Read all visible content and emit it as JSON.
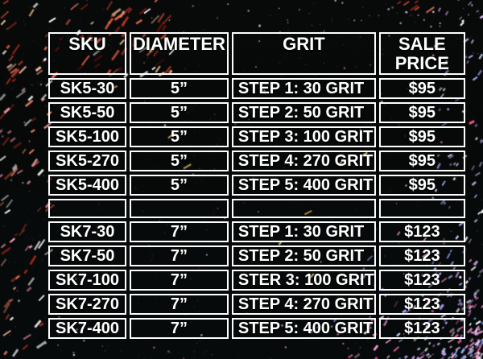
{
  "colors": {
    "background": "#050508",
    "table_border": "#ffffff",
    "table_text": "#ffffff"
  },
  "chart_data": {
    "type": "table",
    "columns": [
      "SKU",
      "DIAMETER",
      "GRIT",
      "SALE PRICE"
    ],
    "rows": [
      [
        "SK5-30",
        "5”",
        "STEP 1: 30 GRIT",
        "$95"
      ],
      [
        "SK5-50",
        "5”",
        "STEP 2: 50 GRIT",
        "$95"
      ],
      [
        "SK5-100",
        "5”",
        "STEP 3: 100 GRIT",
        "$95"
      ],
      [
        "SK5-270",
        "5”",
        "STEP 4: 270 GRIT",
        "$95"
      ],
      [
        "SK5-400",
        "5”",
        "STEP 5: 400 GRIT",
        "$95"
      ],
      [
        "",
        "",
        "",
        ""
      ],
      [
        "SK7-30",
        "7”",
        "STEP 1: 30 GRIT",
        "$123"
      ],
      [
        "SK7-50",
        "7”",
        "STEP 2: 50 GRIT",
        "$123"
      ],
      [
        "SK7-100",
        "7”",
        "STER 3: 100 GRIT",
        "$123"
      ],
      [
        "SK7-270",
        "7”",
        "STEP 4: 270 GRIT",
        "$123"
      ],
      [
        "SK7-400",
        "7”",
        "STEP 5: 400 GRIT",
        "$123"
      ]
    ]
  }
}
